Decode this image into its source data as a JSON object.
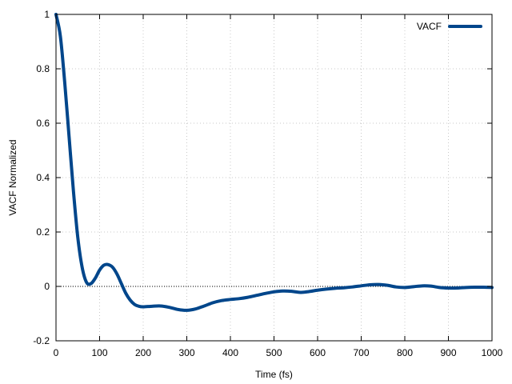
{
  "chart_data": {
    "type": "line",
    "title": "",
    "xlabel": "Time (fs)",
    "ylabel": "VACF Normalized",
    "xlim": [
      0,
      1000
    ],
    "ylim": [
      -0.2,
      1
    ],
    "xticks": [
      0,
      100,
      200,
      300,
      400,
      500,
      600,
      700,
      800,
      900,
      1000
    ],
    "yticks": [
      -0.2,
      0,
      0.2,
      0.4,
      0.6,
      0.8,
      1
    ],
    "ytick_labels": [
      "-0.2",
      "0",
      "0.2",
      "0.4",
      "0.6",
      "0.8",
      "1"
    ],
    "grid": true,
    "zero_line": true,
    "legend_position": "top-right",
    "series": [
      {
        "name": "VACF",
        "color": "#00468b",
        "x": [
          0,
          10,
          20,
          30,
          40,
          50,
          60,
          70,
          80,
          90,
          100,
          110,
          120,
          130,
          140,
          150,
          160,
          170,
          180,
          190,
          200,
          220,
          240,
          260,
          280,
          300,
          320,
          340,
          360,
          380,
          400,
          420,
          440,
          460,
          480,
          500,
          520,
          540,
          560,
          580,
          600,
          620,
          640,
          660,
          680,
          700,
          720,
          740,
          760,
          780,
          800,
          820,
          840,
          860,
          880,
          900,
          920,
          940,
          960,
          980,
          1000
        ],
        "y": [
          1.0,
          0.92,
          0.75,
          0.55,
          0.35,
          0.18,
          0.07,
          0.015,
          0.01,
          0.03,
          0.06,
          0.078,
          0.08,
          0.07,
          0.045,
          0.01,
          -0.025,
          -0.05,
          -0.066,
          -0.073,
          -0.075,
          -0.073,
          -0.072,
          -0.077,
          -0.085,
          -0.088,
          -0.083,
          -0.072,
          -0.06,
          -0.052,
          -0.048,
          -0.045,
          -0.04,
          -0.033,
          -0.026,
          -0.02,
          -0.017,
          -0.018,
          -0.022,
          -0.019,
          -0.014,
          -0.01,
          -0.007,
          -0.005,
          -0.002,
          0.002,
          0.006,
          0.007,
          0.004,
          -0.002,
          -0.004,
          -0.001,
          0.002,
          0.001,
          -0.004,
          -0.006,
          -0.006,
          -0.004,
          -0.003,
          -0.003,
          -0.004
        ]
      }
    ]
  }
}
